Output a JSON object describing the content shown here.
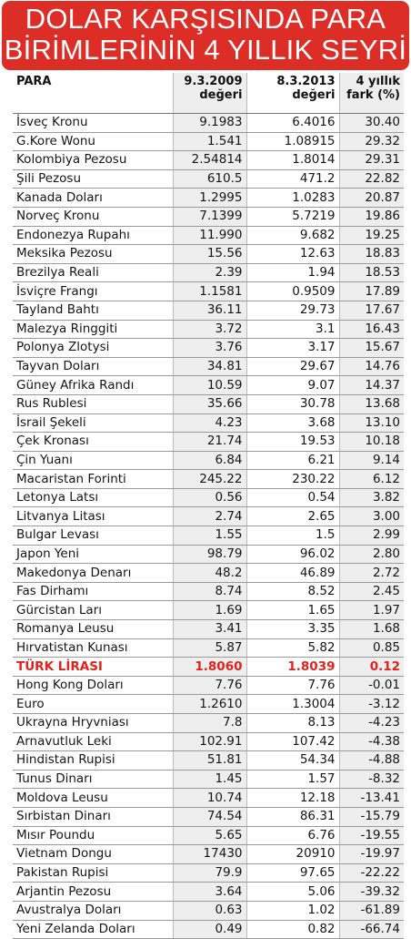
{
  "title": {
    "line1": "DOLAR KARŞISINDA PARA",
    "line2": "BİRİMLERİNİN 4 YILLIK SEYRİ"
  },
  "colors": {
    "banner": "#dd2d27",
    "highlight": "#e0241c"
  },
  "table": {
    "headers": [
      "PARA",
      "9.3.2009 değeri",
      "8.3.2013 değeri",
      "4 yıllık fark (%)"
    ],
    "header_lines": [
      [
        "PARA"
      ],
      [
        "9.3.2009",
        "değeri"
      ],
      [
        "8.3.2013",
        "değeri"
      ],
      [
        "4 yıllık",
        "fark (%)"
      ]
    ],
    "highlight_row": 29,
    "rows": [
      [
        "İsveç Kronu",
        "9.1983",
        "6.4016",
        "30.40"
      ],
      [
        "G.Kore Wonu",
        "1.541",
        "1.08915",
        "29.32"
      ],
      [
        "Kolombiya Pezosu",
        "2.54814",
        "1.8014",
        "29.31"
      ],
      [
        "Şili Pezosu",
        "610.5",
        "471.2",
        "22.82"
      ],
      [
        "Kanada Doları",
        "1.2995",
        "1.0283",
        "20.87"
      ],
      [
        "Norveç Kronu",
        "7.1399",
        "5.7219",
        "19.86"
      ],
      [
        "Endonezya Rupahı",
        "11.990",
        "9.682",
        "19.25"
      ],
      [
        "Meksika Pezosu",
        "15.56",
        "12.63",
        "18.83"
      ],
      [
        "Brezilya Reali",
        "2.39",
        "1.94",
        "18.53"
      ],
      [
        "İsviçre Frangı",
        "1.1581",
        "0.9509",
        "17.89"
      ],
      [
        "Tayland Bahtı",
        "36.11",
        "29.73",
        "17.67"
      ],
      [
        "Malezya Ringgiti",
        "3.72",
        "3.1",
        "16.43"
      ],
      [
        "Polonya Zlotysi",
        "3.76",
        "3.17",
        "15.67"
      ],
      [
        "Tayvan Doları",
        "34.81",
        "29.67",
        "14.76"
      ],
      [
        "Güney Afrika Randı",
        "10.59",
        "9.07",
        "14.37"
      ],
      [
        "Rus Rublesi",
        "35.66",
        "30.78",
        "13.68"
      ],
      [
        "İsrail Şekeli",
        "4.23",
        "3.68",
        "13.10"
      ],
      [
        "Çek Kronası",
        "21.74",
        "19.53",
        "10.18"
      ],
      [
        "Çin Yuanı",
        "6.84",
        "6.21",
        "9.14"
      ],
      [
        "Macaristan Forinti",
        "245.22",
        "230.22",
        "6.12"
      ],
      [
        "Letonya Latsı",
        "0.56",
        "0.54",
        "3.82"
      ],
      [
        "Litvanya Litası",
        "2.74",
        "2.65",
        "3.00"
      ],
      [
        "Bulgar Levası",
        "1.55",
        "1.5",
        "2.99"
      ],
      [
        "Japon Yeni",
        "98.79",
        "96.02",
        "2.80"
      ],
      [
        "Makedonya Denarı",
        "48.2",
        "46.89",
        "2.72"
      ],
      [
        "Fas Dirhamı",
        "8.74",
        "8.52",
        "2.45"
      ],
      [
        "Gürcistan Ları",
        "1.69",
        "1.65",
        "1.97"
      ],
      [
        "Romanya Leusu",
        "3.41",
        "3.35",
        "1.68"
      ],
      [
        "Hırvatistan Kunası",
        "5.87",
        "5.82",
        "0.85"
      ],
      [
        "TÜRK LİRASI",
        "1.8060",
        "1.8039",
        "0.12"
      ],
      [
        "Hong Kong Doları",
        "7.76",
        "7.76",
        "-0.01"
      ],
      [
        "Euro",
        "1.2610",
        "1.3004",
        "-3.12"
      ],
      [
        "Ukrayna Hryvniası",
        "7.8",
        "8.13",
        "-4.23"
      ],
      [
        "Arnavutluk Leki",
        "102.91",
        "107.42",
        "-4.38"
      ],
      [
        "Hindistan Rupisi",
        "51.81",
        "54.34",
        "-4.88"
      ],
      [
        "Tunus Dinarı",
        "1.45",
        "1.57",
        "-8.32"
      ],
      [
        "Moldova Leusu",
        "10.74",
        "12.18",
        "-13.41"
      ],
      [
        "Sırbistan Dinarı",
        "74.54",
        "86.31",
        "-15.79"
      ],
      [
        "Mısır Poundu",
        "5.65",
        "6.76",
        "-19.55"
      ],
      [
        "Vietnam Dongu",
        "17430",
        "20910",
        "-19.97"
      ],
      [
        "Pakistan Rupisi",
        "79.9",
        "97.65",
        "-22.22"
      ],
      [
        "Arjantin Pezosu",
        "3.64",
        "5.06",
        "-39.32"
      ],
      [
        "Avustralya Doları",
        "0.63",
        "1.02",
        "-61.89"
      ],
      [
        "Yeni Zelanda Doları",
        "0.49",
        "0.82",
        "-66.74"
      ]
    ]
  }
}
